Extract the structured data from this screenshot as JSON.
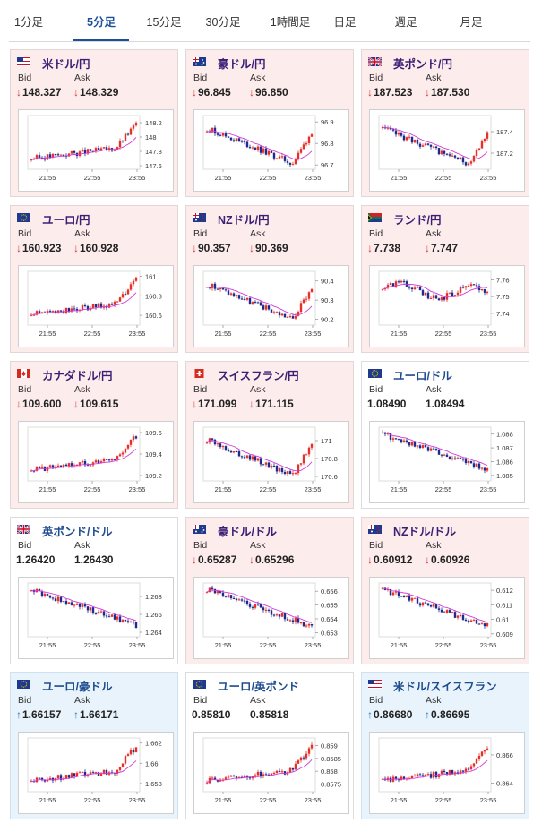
{
  "tabs": [
    {
      "label": "1分足",
      "active": false
    },
    {
      "label": "5分足",
      "active": true
    },
    {
      "label": "15分足",
      "active": false
    },
    {
      "label": "30分足",
      "active": false
    },
    {
      "label": "1時間足",
      "active": false
    },
    {
      "label": "日足",
      "active": false
    },
    {
      "label": "週足",
      "active": false
    },
    {
      "label": "月足",
      "active": false
    }
  ],
  "labels": {
    "bid": "Bid",
    "ask": "Ask"
  },
  "colors": {
    "up_candle": "#e8302a",
    "down_candle": "#1f2a8c",
    "ma": "#d23ad8",
    "down_arrow": "#d03a2f",
    "up_arrow": "#2b79c2"
  },
  "cards": [
    {
      "title": "米ドル/円",
      "flag": "us",
      "trend": "down",
      "bid": "148.327",
      "ask": "148.329",
      "x_ticks": [
        "21:55",
        "22:55",
        "23:55"
      ],
      "y_ticks": [
        "148.2",
        "148",
        "147.8",
        "147.6"
      ],
      "y_range": [
        147.55,
        148.3
      ],
      "shape": "up"
    },
    {
      "title": "豪ドル/円",
      "flag": "au",
      "trend": "down",
      "bid": "96.845",
      "ask": "96.850",
      "x_ticks": [
        "21:55",
        "22:55",
        "23:55"
      ],
      "y_ticks": [
        "96.9",
        "96.8",
        "96.7"
      ],
      "y_range": [
        96.68,
        96.93
      ],
      "shape": "dip"
    },
    {
      "title": "英ポンド/円",
      "flag": "gb",
      "trend": "down",
      "bid": "187.523",
      "ask": "187.530",
      "x_ticks": [
        "21:55",
        "22:55",
        "23:55"
      ],
      "y_ticks": [
        "187.4",
        "187.2"
      ],
      "y_range": [
        187.05,
        187.55
      ],
      "shape": "dip"
    },
    {
      "title": "ユーロ/円",
      "flag": "eu",
      "trend": "down",
      "bid": "160.923",
      "ask": "160.928",
      "x_ticks": [
        "21:55",
        "22:55",
        "23:55"
      ],
      "y_ticks": [
        "161",
        "160.8",
        "160.6"
      ],
      "y_range": [
        160.5,
        161.05
      ],
      "shape": "up"
    },
    {
      "title": "NZドル/円",
      "flag": "nz",
      "trend": "down",
      "bid": "90.357",
      "ask": "90.369",
      "x_ticks": [
        "21:55",
        "22:55",
        "23:55"
      ],
      "y_ticks": [
        "90.4",
        "90.3",
        "90.2"
      ],
      "y_range": [
        90.17,
        90.45
      ],
      "shape": "dip"
    },
    {
      "title": "ランド/円",
      "flag": "za",
      "trend": "down",
      "bid": "7.738",
      "ask": "7.747",
      "x_ticks": [
        "21:55",
        "22:55",
        "23:55"
      ],
      "y_ticks": [
        "7.76",
        "7.75",
        "7.74"
      ],
      "y_range": [
        7.733,
        7.765
      ],
      "shape": "flat"
    },
    {
      "title": "カナダドル/円",
      "flag": "ca",
      "trend": "down",
      "bid": "109.600",
      "ask": "109.615",
      "x_ticks": [
        "21:55",
        "22:55",
        "23:55"
      ],
      "y_ticks": [
        "109.6",
        "109.4",
        "109.2"
      ],
      "y_range": [
        109.15,
        109.65
      ],
      "shape": "up"
    },
    {
      "title": "スイスフラン/円",
      "flag": "ch",
      "trend": "down",
      "bid": "171.099",
      "ask": "171.115",
      "x_ticks": [
        "21:55",
        "22:55",
        "23:55"
      ],
      "y_ticks": [
        "171",
        "170.8",
        "170.6"
      ],
      "y_range": [
        170.55,
        171.15
      ],
      "shape": "dip"
    },
    {
      "title": "ユーロ/ドル",
      "flag": "eu",
      "trend": "none",
      "bid": "1.08490",
      "ask": "1.08494",
      "x_ticks": [
        "21:55",
        "22:55",
        "23:55"
      ],
      "y_ticks": [
        "1.088",
        "1.087",
        "1.086",
        "1.085"
      ],
      "y_range": [
        1.0846,
        1.0885
      ],
      "shape": "down"
    },
    {
      "title": "英ポンド/ドル",
      "flag": "gb",
      "trend": "none",
      "bid": "1.26420",
      "ask": "1.26430",
      "x_ticks": [
        "21:55",
        "22:55",
        "23:55"
      ],
      "y_ticks": [
        "1.268",
        "1.266",
        "1.264"
      ],
      "y_range": [
        1.2635,
        1.2695
      ],
      "shape": "down"
    },
    {
      "title": "豪ドル/ドル",
      "flag": "au",
      "trend": "down",
      "bid": "0.65287",
      "ask": "0.65296",
      "x_ticks": [
        "21:55",
        "22:55",
        "23:55"
      ],
      "y_ticks": [
        "0.656",
        "0.655",
        "0.654",
        "0.653"
      ],
      "y_range": [
        0.6527,
        0.6566
      ],
      "shape": "down"
    },
    {
      "title": "NZドル/ドル",
      "flag": "nz",
      "trend": "down",
      "bid": "0.60912",
      "ask": "0.60926",
      "x_ticks": [
        "21:55",
        "22:55",
        "23:55"
      ],
      "y_ticks": [
        "0.612",
        "0.611",
        "0.61",
        "0.609"
      ],
      "y_range": [
        0.6088,
        0.6125
      ],
      "shape": "down"
    },
    {
      "title": "ユーロ/豪ドル",
      "flag": "eu",
      "trend": "up",
      "bid": "1.66157",
      "ask": "1.66171",
      "x_ticks": [
        "21:55",
        "22:55",
        "23:55"
      ],
      "y_ticks": [
        "1.662",
        "1.66",
        "1.658"
      ],
      "y_range": [
        1.6572,
        1.6625
      ],
      "shape": "up"
    },
    {
      "title": "ユーロ/英ポンド",
      "flag": "eu",
      "trend": "none",
      "bid": "0.85810",
      "ask": "0.85818",
      "x_ticks": [
        "21:55",
        "22:55",
        "23:55"
      ],
      "y_ticks": [
        "0.859",
        "0.8585",
        "0.858",
        "0.8575"
      ],
      "y_range": [
        0.8572,
        0.8593
      ],
      "shape": "up"
    },
    {
      "title": "米ドル/スイスフラン",
      "flag": "us",
      "trend": "up",
      "bid": "0.86680",
      "ask": "0.86695",
      "x_ticks": [
        "21:55",
        "22:55",
        "23:55"
      ],
      "y_ticks": [
        "0.866",
        "0.864"
      ],
      "y_range": [
        0.8634,
        0.8672
      ],
      "shape": "up"
    }
  ]
}
